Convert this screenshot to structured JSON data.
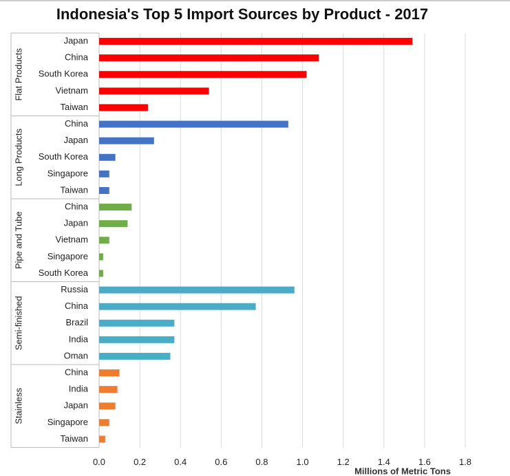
{
  "chart_data": {
    "type": "bar",
    "orientation": "horizontal",
    "title": "Indonesia's Top 5 Import Sources by Product - 2017",
    "x_label": "Millions of Metric Tons",
    "xlim": [
      0,
      1.8
    ],
    "xticks": [
      {
        "value": 0,
        "label": "0.0"
      },
      0.2,
      0.4,
      0.6,
      0.8,
      {
        "value": 1,
        "label": "1.0"
      },
      1.2,
      1.4,
      1.6,
      1.8
    ],
    "grid": true,
    "series": [
      {
        "name": "Flat Products",
        "color": "#ff0000",
        "categories": [
          "Japan",
          "China",
          "South Korea",
          "Vietnam",
          "Taiwan"
        ],
        "values": [
          1.54,
          1.08,
          1.02,
          0.54,
          0.24
        ]
      },
      {
        "name": "Long Products",
        "color": "#4472c4",
        "categories": [
          "China",
          "Japan",
          "South Korea",
          "Singapore",
          "Taiwan"
        ],
        "values": [
          0.93,
          0.27,
          0.08,
          0.05,
          0.05
        ]
      },
      {
        "name": "Pipe and Tube",
        "color": "#70ad47",
        "categories": [
          "China",
          "Japan",
          "Vietnam",
          "Singapore",
          "South Korea"
        ],
        "values": [
          0.16,
          0.14,
          0.05,
          0.02,
          0.02
        ]
      },
      {
        "name": "Semi-finished",
        "color": "#4bacc6",
        "categories": [
          "Russia",
          "China",
          "Brazil",
          "India",
          "Oman"
        ],
        "values": [
          0.96,
          0.77,
          0.37,
          0.37,
          0.35
        ]
      },
      {
        "name": "Stainless",
        "color": "#ed7d31",
        "categories": [
          "China",
          "India",
          "Japan",
          "Singapore",
          "Taiwan"
        ],
        "values": [
          0.1,
          0.09,
          0.08,
          0.05,
          0.03
        ]
      }
    ]
  }
}
